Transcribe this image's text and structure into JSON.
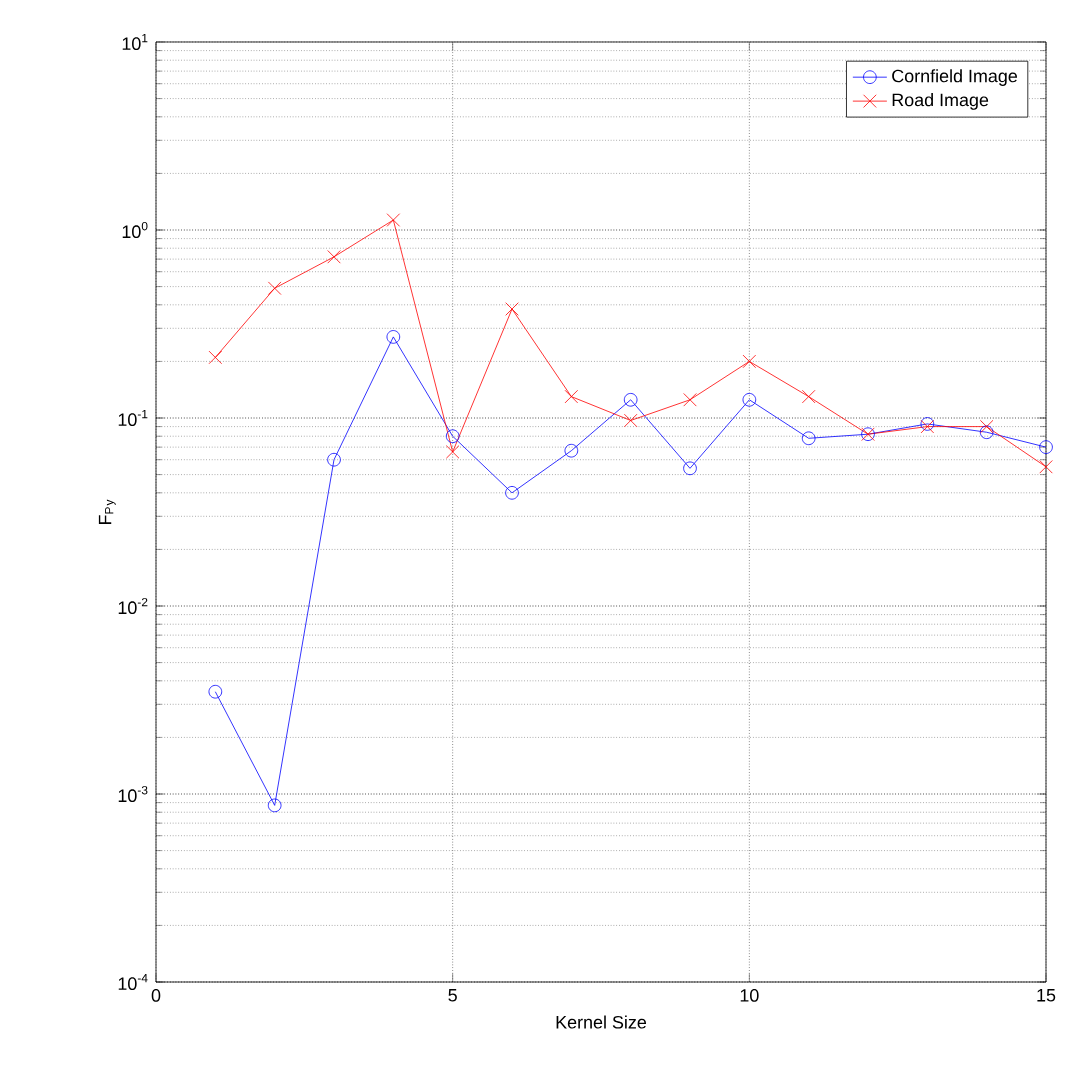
{
  "chart_data": {
    "type": "line",
    "xlabel": "Kernel Size",
    "ylabel": "F$_{P}$$_{y}$",
    "log": "y",
    "grid": true,
    "legend": "top right",
    "line_style": "solid",
    "x": [
      1,
      2,
      3,
      4,
      5,
      6,
      7,
      8,
      9,
      10,
      11,
      12,
      13,
      14,
      15
    ],
    "xlim": [
      0,
      15
    ],
    "xticks": [
      0,
      5,
      10,
      15
    ],
    "ylim": [
      0.0001,
      10
    ],
    "yticks": [
      {
        "value": 0.0001,
        "label": "10$^{-4}$"
      },
      {
        "value": 0.001,
        "label": "10$^{-3}$"
      },
      {
        "value": 0.01,
        "label": "10$^{-2}$"
      },
      {
        "value": 0.1,
        "label": "10$^{-1}$"
      },
      {
        "value": 1,
        "label": "10$^{0}$"
      },
      {
        "value": 10,
        "label": "10$^{1}$"
      }
    ],
    "series": [
      {
        "name": "Cornfield Image",
        "color": "#0000ff",
        "marker": "circle",
        "values": [
          0.0035,
          0.00087,
          0.06,
          0.27,
          0.08,
          0.04,
          0.067,
          0.125,
          0.054,
          0.125,
          0.078,
          0.082,
          0.093,
          0.084,
          0.07
        ]
      },
      {
        "name": "Road Image",
        "color": "#ff0000",
        "marker": "cross",
        "values": [
          0.21,
          0.49,
          0.72,
          1.13,
          0.066,
          0.38,
          0.13,
          0.097,
          0.125,
          0.2,
          0.13,
          0.082,
          0.09,
          0.09,
          0.055
        ]
      }
    ]
  }
}
